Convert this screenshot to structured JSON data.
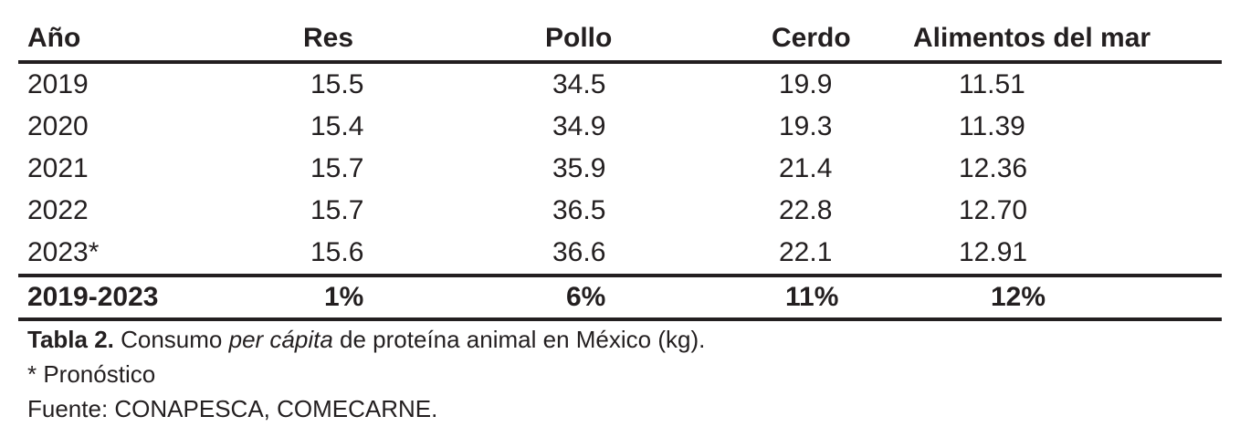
{
  "table": {
    "headers": [
      "Año",
      "Res",
      "Pollo",
      "Cerdo",
      "Alimentos del mar"
    ],
    "rows": [
      [
        "2019",
        "15.5",
        "34.5",
        "19.9",
        "11.51"
      ],
      [
        "2020",
        "15.4",
        "34.9",
        "19.3",
        "11.39"
      ],
      [
        "2021",
        "15.7",
        "35.9",
        "21.4",
        "12.36"
      ],
      [
        "2022",
        "15.7",
        "36.5",
        "22.8",
        "12.70"
      ],
      [
        "2023*",
        "15.6",
        "36.6",
        "22.1",
        "12.91"
      ]
    ],
    "footer": [
      "2019-2023",
      "1%",
      "6%",
      "11%",
      "12%"
    ]
  },
  "caption": {
    "label": "Tabla 2.",
    "text_before": " Consumo ",
    "text_italic": "per cápita",
    "text_after": " de proteína animal en México (kg)."
  },
  "note": "* Pronóstico",
  "source": "Fuente: CONAPESCA, COMECARNE."
}
